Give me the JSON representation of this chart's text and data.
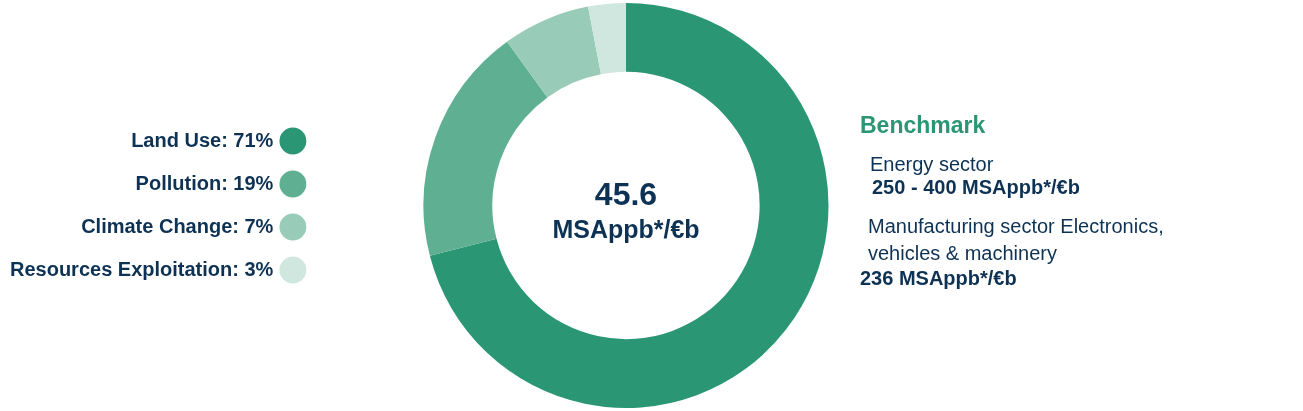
{
  "chart_data": {
    "type": "donut",
    "categories": [
      "Land Use",
      "Pollution",
      "Climate Change",
      "Resources Exploitation"
    ],
    "values": [
      71,
      19,
      7,
      3
    ],
    "value_labels": [
      "71%",
      "19%",
      "7%",
      "3%"
    ],
    "colors": [
      "#2a9673",
      "#5fb093",
      "#98cbb8",
      "#cfe7de"
    ],
    "legend": "left",
    "annotations": [
      "45.6",
      "MSAppb*/€b",
      "Benchmark",
      "Energy sector",
      "250 - 400 MSAppb*/€b",
      "Manufacturing sector Electronics, vehicles & machinery",
      "236 MSAppb*/€b"
    ]
  }
}
